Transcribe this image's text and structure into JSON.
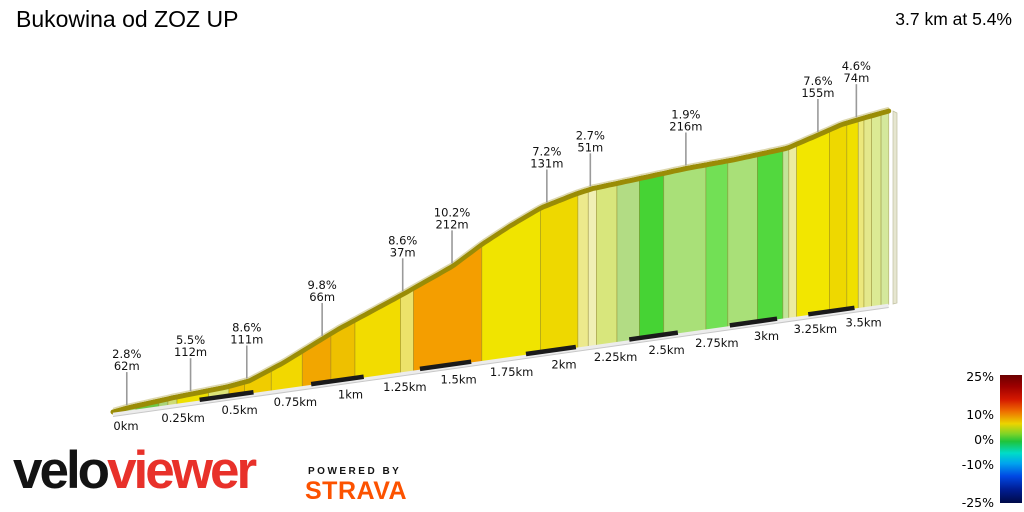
{
  "header": {
    "title": "Bukowina od ZOZ UP",
    "summary": "3.7 km at 5.4%"
  },
  "chart_data": {
    "type": "area",
    "title": "Bukowina od ZOZ UP",
    "subtitle": "3.7 km at 5.4%",
    "x_unit": "km",
    "total_distance_km": 3.7,
    "average_gradient_pct": 5.4,
    "total_gain_m": 193,
    "grid": false,
    "legend_position": "bottom-right",
    "profile_points": [
      [
        0.0,
        1
      ],
      [
        0.06,
        3
      ],
      [
        0.27,
        7
      ],
      [
        0.5,
        10
      ],
      [
        0.6,
        13
      ],
      [
        0.75,
        26
      ],
      [
        1.0,
        52
      ],
      [
        1.3,
        78
      ],
      [
        1.53,
        99
      ],
      [
        1.67,
        117
      ],
      [
        1.8,
        131
      ],
      [
        1.95,
        145
      ],
      [
        2.12,
        154
      ],
      [
        2.2,
        157
      ],
      [
        2.4,
        160
      ],
      [
        2.66,
        164
      ],
      [
        2.9,
        166
      ],
      [
        3.17,
        170
      ],
      [
        3.33,
        179
      ],
      [
        3.45,
        186
      ],
      [
        3.55,
        189
      ],
      [
        3.7,
        193
      ]
    ],
    "annotations": [
      {
        "km": 0.06,
        "gradient": "2.8%",
        "length": "62m"
      },
      {
        "km": 0.34,
        "gradient": "5.5%",
        "length": "112m"
      },
      {
        "km": 0.59,
        "gradient": "8.6%",
        "length": "111m"
      },
      {
        "km": 0.93,
        "gradient": "9.8%",
        "length": "66m"
      },
      {
        "km": 1.3,
        "gradient": "8.6%",
        "length": "37m"
      },
      {
        "km": 1.53,
        "gradient": "10.2%",
        "length": "212m"
      },
      {
        "km": 1.98,
        "gradient": "7.2%",
        "length": "131m"
      },
      {
        "km": 2.19,
        "gradient": "2.7%",
        "length": "51m"
      },
      {
        "km": 2.66,
        "gradient": "1.9%",
        "length": "216m"
      },
      {
        "km": 3.33,
        "gradient": "7.6%",
        "length": "155m"
      },
      {
        "km": 3.53,
        "gradient": "4.6%",
        "length": "74m"
      }
    ],
    "x_ticks": [
      {
        "km": 0.0,
        "label": "0km"
      },
      {
        "km": 0.25,
        "label": "0.25km"
      },
      {
        "km": 0.5,
        "label": "0.5km"
      },
      {
        "km": 0.75,
        "label": "0.75km"
      },
      {
        "km": 1.0,
        "label": "1km"
      },
      {
        "km": 1.25,
        "label": "1.25km"
      },
      {
        "km": 1.5,
        "label": "1.5km"
      },
      {
        "km": 1.75,
        "label": "1.75km"
      },
      {
        "km": 2.0,
        "label": "2km"
      },
      {
        "km": 2.25,
        "label": "2.25km"
      },
      {
        "km": 2.5,
        "label": "2.5km"
      },
      {
        "km": 2.75,
        "label": "2.75km"
      },
      {
        "km": 3.0,
        "label": "3km"
      },
      {
        "km": 3.25,
        "label": "3.25km"
      },
      {
        "km": 3.5,
        "label": "3.5km"
      }
    ],
    "segments": [
      [
        0.0,
        0.05,
        "#cfd2c0"
      ],
      [
        0.05,
        0.1,
        "#a9d57e"
      ],
      [
        0.1,
        0.2,
        "#6ec844"
      ],
      [
        0.2,
        0.24,
        "#aad478"
      ],
      [
        0.24,
        0.28,
        "#cfdc74"
      ],
      [
        0.28,
        0.42,
        "#eee000"
      ],
      [
        0.42,
        0.51,
        "#dce478"
      ],
      [
        0.51,
        0.58,
        "#eec200"
      ],
      [
        0.58,
        0.7,
        "#f0cc00"
      ],
      [
        0.7,
        0.84,
        "#f2d800"
      ],
      [
        0.84,
        0.97,
        "#f2a600"
      ],
      [
        0.97,
        1.08,
        "#eec000"
      ],
      [
        1.08,
        1.29,
        "#f2dc00"
      ],
      [
        1.29,
        1.35,
        "#ece26a"
      ],
      [
        1.35,
        1.67,
        "#f49e00"
      ],
      [
        1.67,
        1.95,
        "#f0e400"
      ],
      [
        1.95,
        2.13,
        "#eed800"
      ],
      [
        2.13,
        2.18,
        "#ece98c"
      ],
      [
        2.18,
        2.22,
        "#f0f0b4"
      ],
      [
        2.22,
        2.32,
        "#d8e67c"
      ],
      [
        2.32,
        2.43,
        "#b2dc84"
      ],
      [
        2.43,
        2.55,
        "#46d334"
      ],
      [
        2.55,
        2.76,
        "#a9e078"
      ],
      [
        2.76,
        2.87,
        "#72e055"
      ],
      [
        2.87,
        3.02,
        "#a9e078"
      ],
      [
        3.02,
        3.15,
        "#52d83e"
      ],
      [
        3.15,
        3.18,
        "#c2e498"
      ],
      [
        3.18,
        3.22,
        "#ececa0"
      ],
      [
        3.22,
        3.39,
        "#f2e600"
      ],
      [
        3.39,
        3.48,
        "#eed800"
      ],
      [
        3.48,
        3.54,
        "#f0e000"
      ],
      [
        3.54,
        3.57,
        "#ece87c"
      ],
      [
        3.57,
        3.61,
        "#e4e88c"
      ],
      [
        3.61,
        3.66,
        "#dcea94"
      ],
      [
        3.66,
        3.7,
        "#d4e89c"
      ]
    ],
    "base_dashes": [
      [
        0.38,
        0.62
      ],
      [
        0.88,
        1.12
      ],
      [
        1.38,
        1.62
      ],
      [
        1.88,
        2.12
      ],
      [
        2.38,
        2.62
      ],
      [
        2.88,
        3.12
      ],
      [
        3.28,
        3.52
      ]
    ],
    "legend": {
      "ticks": [
        {
          "value": "25%"
        },
        {
          "value": "10%"
        },
        {
          "value": "0%"
        },
        {
          "value": "-10%"
        },
        {
          "value": "-25%"
        }
      ]
    },
    "colors": {
      "road_top": "#9a8c06",
      "road_highlight": "#ddd8ae",
      "base_line": "#ececec",
      "base_edge": "#c8c8c8",
      "tick_dash": "#1a1a1a",
      "annotation_line": "#9a9a9a",
      "text": "#111111"
    }
  },
  "footer": {
    "brand_velo": "velo",
    "brand_viewer": "viewer",
    "powered_by": "POWERED BY",
    "strava": "STRAVA",
    "brand_red": "#e8312a",
    "strava_orange": "#fc5200"
  }
}
